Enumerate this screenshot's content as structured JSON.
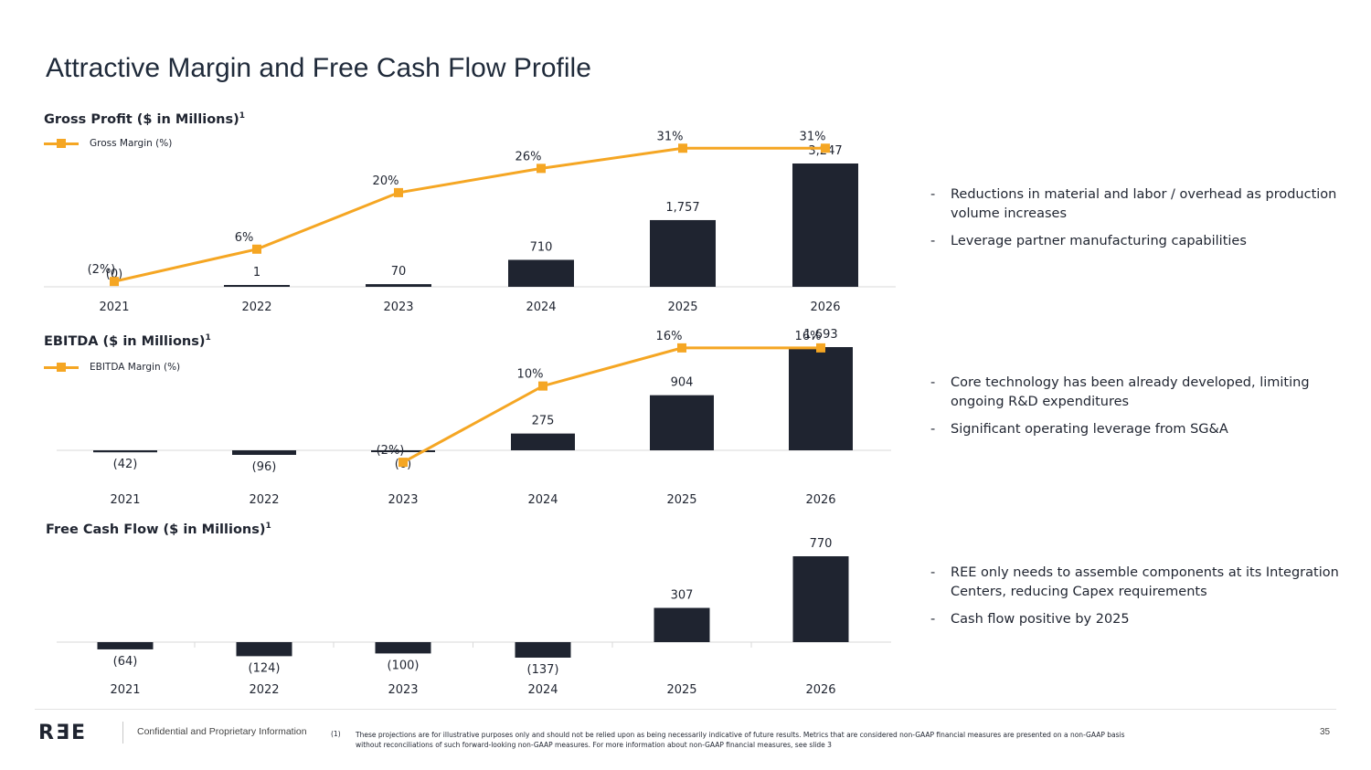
{
  "page": {
    "title": "Attractive Margin and Free Cash Flow Profile",
    "confidential": "Confidential and Proprietary Information",
    "footnote_marker": "(1)",
    "footnote": "These projections are for illustrative purposes only and should not be relied upon as being necessarily indicative of future results. Metrics that are considered non-GAAP financial measures are presented on a non-GAAP basis without reconciliations of such forward-looking non-GAAP measures. For more information about non-GAAP financial measures, see slide 3",
    "page_number": "35",
    "logo_text": "RƎE"
  },
  "colors": {
    "bar": "#1f2430",
    "line": "#f5a623",
    "axis": "#d9d9d9",
    "text": "#1f2430"
  },
  "charts": {
    "gross_profit": {
      "title": "Gross Profit ($ in Millions)",
      "footnote_ref": "1",
      "legend": "Gross Margin (%)"
    },
    "ebitda": {
      "title": "EBITDA ($ in Millions)",
      "footnote_ref": "1",
      "legend": "EBITDA Margin (%)"
    },
    "fcf": {
      "title": "Free Cash Flow ($ in Millions)",
      "footnote_ref": "1"
    }
  },
  "bullets": {
    "gross_profit": [
      "Reductions in material and labor / overhead as production volume increases",
      "Leverage partner manufacturing capabilities"
    ],
    "ebitda": [
      "Core technology has been already developed, limiting ongoing R&D expenditures",
      "Significant operating leverage from SG&A"
    ],
    "fcf": [
      "REE only needs to assemble components at its Integration Centers, reducing Capex requirements",
      "Cash flow positive by 2025"
    ]
  },
  "chart_data": [
    {
      "id": "gross_profit",
      "type": "bar",
      "title": "Gross Profit ($ in Millions)",
      "categories": [
        "2021",
        "2022",
        "2023",
        "2024",
        "2025",
        "2026"
      ],
      "values": [
        0,
        1,
        70,
        710,
        1757,
        3247
      ],
      "value_labels": [
        "(0)",
        "1",
        "70",
        "710",
        "1,757",
        "3,247"
      ],
      "line_series": {
        "name": "Gross Margin (%)",
        "values": [
          -2,
          6,
          20,
          26,
          31,
          31
        ],
        "labels": [
          "(2%)",
          "6%",
          "20%",
          "26%",
          "31%",
          "31%"
        ],
        "ylim": [
          -4,
          34
        ]
      },
      "ylim": [
        0,
        3247
      ],
      "legend": "top-left"
    },
    {
      "id": "ebitda",
      "type": "bar",
      "title": "EBITDA ($ in Millions)",
      "categories": [
        "2021",
        "2022",
        "2023",
        "2024",
        "2025",
        "2026"
      ],
      "values": [
        -42,
        -96,
        -6,
        275,
        904,
        1693
      ],
      "value_labels": [
        "(42)",
        "(96)",
        "(6)",
        "275",
        "904",
        "1,693"
      ],
      "line_series": {
        "name": "EBITDA Margin (%)",
        "start_index": 2,
        "values": [
          -2,
          10,
          16,
          16
        ],
        "labels": [
          "(2%)",
          "10%",
          "16%",
          "16%"
        ],
        "ylim": [
          -4,
          19
        ]
      },
      "ylim": [
        -96,
        1693
      ],
      "legend": "top-left"
    },
    {
      "id": "fcf",
      "type": "bar",
      "title": "Free Cash Flow ($ in Millions)",
      "categories": [
        "2021",
        "2022",
        "2023",
        "2024",
        "2025",
        "2026"
      ],
      "values": [
        -64,
        -124,
        -100,
        -137,
        307,
        770
      ],
      "value_labels": [
        "(64)",
        "(124)",
        "(100)",
        "(137)",
        "307",
        "770"
      ],
      "ylim": [
        -137,
        770
      ]
    }
  ]
}
